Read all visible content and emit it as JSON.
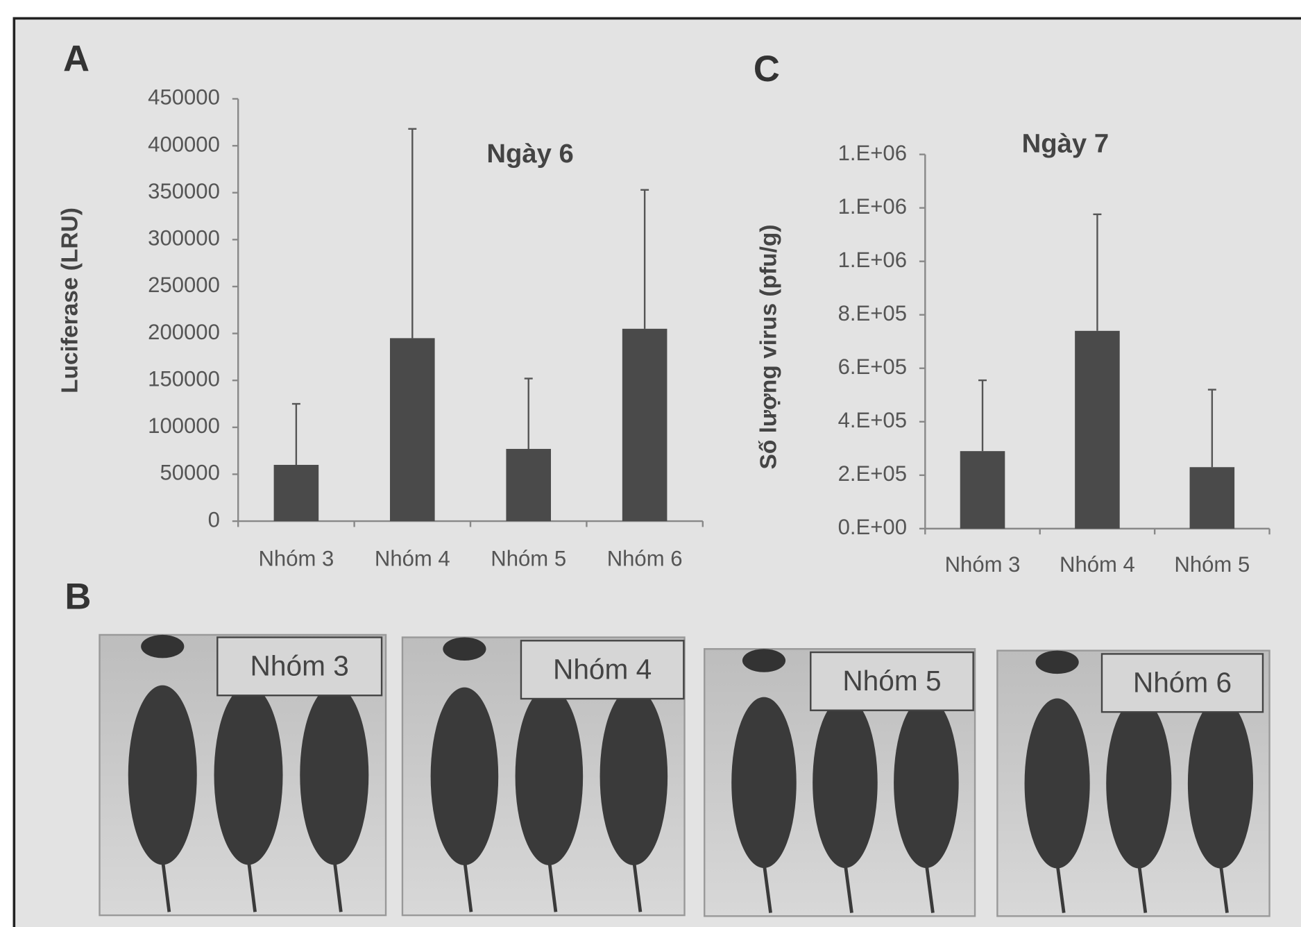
{
  "panel_labels": {
    "a": "A",
    "b": "B",
    "c": "C"
  },
  "chart_data": [
    {
      "type": "bar",
      "title": "Ngày 6",
      "y_label": "Luciferase (LRU)",
      "categories": [
        "Nhóm 3",
        "Nhóm 4",
        "Nhóm 5",
        "Nhóm 6"
      ],
      "values": [
        60000,
        195000,
        77000,
        205000
      ],
      "errors": [
        65000,
        223000,
        75000,
        148000
      ],
      "color": "#4a4a4a",
      "ylim": [
        0,
        450000
      ],
      "yticks": [
        0,
        50000,
        100000,
        150000,
        200000,
        250000,
        300000,
        350000,
        400000,
        450000
      ]
    },
    {
      "type": "bar",
      "title": "Ngày 7",
      "y_label": "Số lượng virus (pfu/g)",
      "categories": [
        "Nhóm 3",
        "Nhóm 4",
        "Nhóm 5"
      ],
      "values": [
        290000,
        740000,
        230000
      ],
      "errors": [
        265000,
        436000,
        290000
      ],
      "color": "#4a4a4a",
      "ylim": [
        0,
        1400000
      ],
      "yticks": [
        {
          "value": 0,
          "label": "0.E+00"
        },
        {
          "value": 200000,
          "label": "2.E+05"
        },
        {
          "value": 400000,
          "label": "4.E+05"
        },
        {
          "value": 600000,
          "label": "6.E+05"
        },
        {
          "value": 800000,
          "label": "8.E+05"
        },
        {
          "value": 1000000,
          "label": "1.E+06"
        },
        {
          "value": 1200000,
          "label": "1.E+06"
        },
        {
          "value": 1400000,
          "label": "1.E+06"
        }
      ]
    }
  ],
  "photos": [
    {
      "label": "Nhóm 3"
    },
    {
      "label": "Nhóm 4"
    },
    {
      "label": "Nhóm 5"
    },
    {
      "label": "Nhóm 6"
    }
  ]
}
